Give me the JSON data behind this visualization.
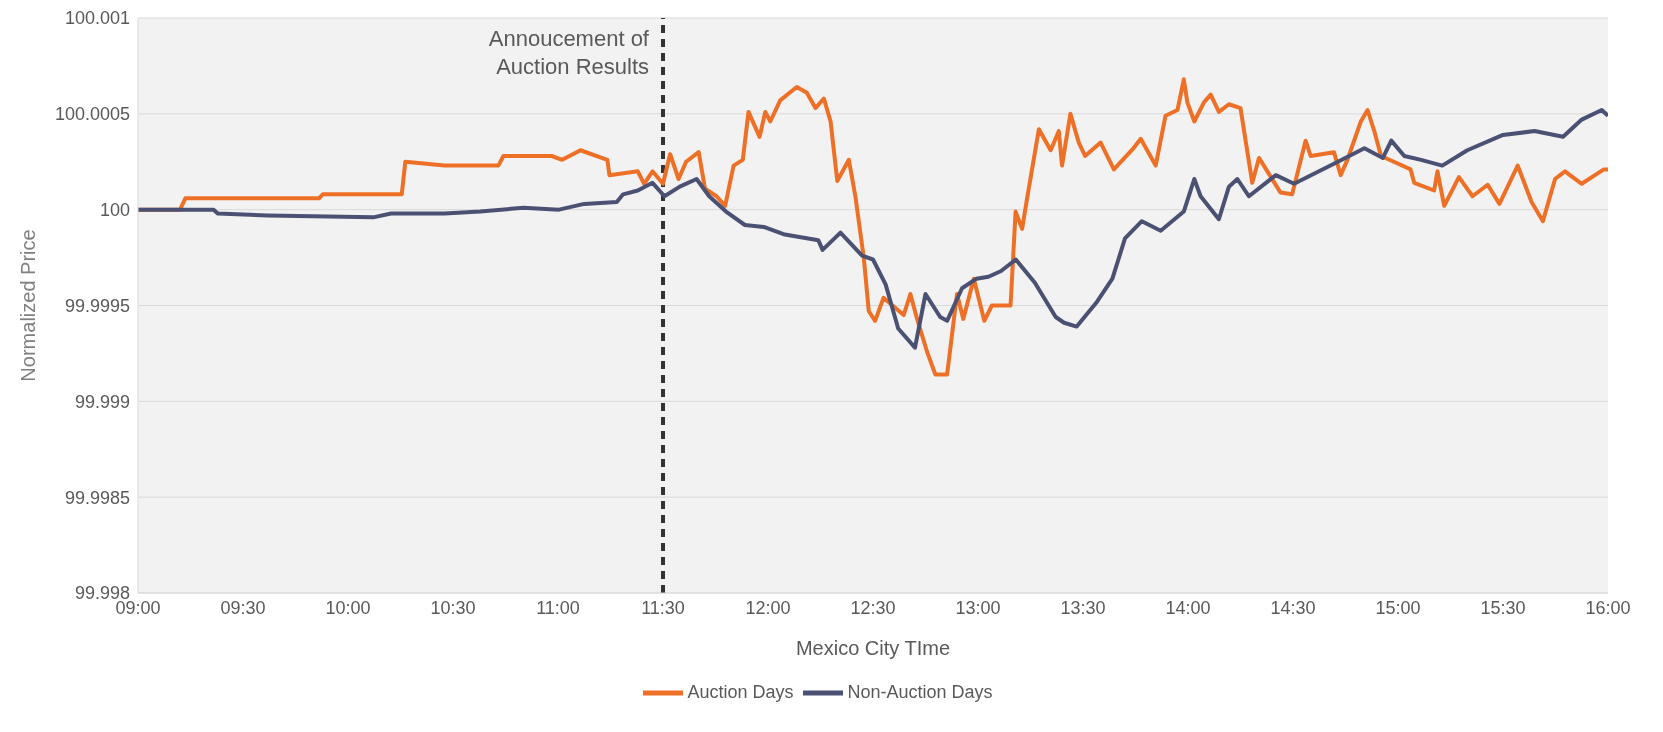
{
  "chart_data": {
    "type": "line",
    "xlabel": "Mexico City TIme",
    "ylabel": "Normalized Price",
    "xlim": [
      9,
      16
    ],
    "xticks": [
      {
        "value": 9,
        "label": "09:00"
      },
      {
        "value": 9.5,
        "label": "09:30"
      },
      {
        "value": 10,
        "label": "10:00"
      },
      {
        "value": 10.5,
        "label": "10:30"
      },
      {
        "value": 11,
        "label": "11:00"
      },
      {
        "value": 11.5,
        "label": "11:30"
      },
      {
        "value": 12,
        "label": "12:00"
      },
      {
        "value": 12.5,
        "label": "12:30"
      },
      {
        "value": 13,
        "label": "13:00"
      },
      {
        "value": 13.5,
        "label": "13:30"
      },
      {
        "value": 14,
        "label": "14:00"
      },
      {
        "value": 14.5,
        "label": "14:30"
      },
      {
        "value": 15,
        "label": "15:00"
      },
      {
        "value": 15.5,
        "label": "15:30"
      },
      {
        "value": 16,
        "label": "16:00"
      }
    ],
    "ylim": [
      99.998,
      100.001
    ],
    "yticks": [
      99.998,
      99.9985,
      99.999,
      99.9995,
      100,
      100.0005,
      100.001
    ],
    "grid": "y",
    "legend": "bottom",
    "marker": "none",
    "line_style": "solid",
    "ref_lines": [
      {
        "axis": "x",
        "value": 11.5,
        "label": "Annoucement of Auction Results",
        "color": "#333333",
        "line_style": "dashed"
      }
    ],
    "series": [
      {
        "name": "Auction Days",
        "color": "#ee7027",
        "x": [
          9,
          9.2,
          9.226,
          9.863,
          9.88,
          10.256,
          10.273,
          10.46,
          10.716,
          10.74,
          10.97,
          11.02,
          11.107,
          11.235,
          11.245,
          11.38,
          11.41,
          11.45,
          11.5,
          11.534,
          11.574,
          11.61,
          11.67,
          11.7,
          11.755,
          11.796,
          11.836,
          11.88,
          11.907,
          11.96,
          11.987,
          12.011,
          12.058,
          12.137,
          12.185,
          12.226,
          12.266,
          12.298,
          12.33,
          12.385,
          12.416,
          12.456,
          12.48,
          12.51,
          12.55,
          12.646,
          12.678,
          12.71,
          12.757,
          12.797,
          12.853,
          12.9,
          12.93,
          12.98,
          13.03,
          13.066,
          13.155,
          13.179,
          13.21,
          13.234,
          13.29,
          13.346,
          13.385,
          13.4,
          13.44,
          13.48,
          13.51,
          13.584,
          13.647,
          13.74,
          13.775,
          13.846,
          13.893,
          13.95,
          13.98,
          13.997,
          14.03,
          14.076,
          14.108,
          14.147,
          14.195,
          14.25,
          14.306,
          14.338,
          14.378,
          14.44,
          14.496,
          14.56,
          14.584,
          14.695,
          14.727,
          14.759,
          14.823,
          14.855,
          14.887,
          14.919,
          14.98,
          15.06,
          15.077,
          15.172,
          15.188,
          15.22,
          15.29,
          15.355,
          15.427,
          15.483,
          15.57,
          15.636,
          15.69,
          15.748,
          15.795,
          15.875,
          15.98,
          16
        ],
        "values": [
          100,
          100,
          100.00006,
          100.00006,
          100.00008,
          100.00008,
          100.00025,
          100.00023,
          100.00023,
          100.00028,
          100.00028,
          100.00026,
          100.00031,
          100.00026,
          100.00018,
          100.0002,
          100.000135,
          100.0002,
          100.000135,
          100.00029,
          100.00016,
          100.00025,
          100.0003,
          100.00011,
          100.00007,
          100.00002,
          100.00023,
          100.00026,
          100.00051,
          100.00038,
          100.00051,
          100.00046,
          100.00057,
          100.00064,
          100.00061,
          100.00053,
          100.00058,
          100.00046,
          100.00015,
          100.00026,
          100.00007,
          99.99975,
          99.99947,
          99.99942,
          99.99954,
          99.99945,
          99.99956,
          99.99943,
          99.99926,
          99.99914,
          99.99914,
          99.99956,
          99.99943,
          99.99964,
          99.99942,
          99.9995,
          99.9995,
          99.99999,
          99.9999,
          100.00006,
          100.00042,
          100.00031,
          100.00041,
          100.00023,
          100.0005,
          100.00035,
          100.00028,
          100.00035,
          100.00021,
          100.00032,
          100.00037,
          100.00023,
          100.00049,
          100.00052,
          100.00068,
          100.00056,
          100.00046,
          100.00056,
          100.0006,
          100.00051,
          100.00055,
          100.00053,
          100.00014,
          100.00027,
          100.0002,
          100.00009,
          100.00008,
          100.00036,
          100.00028,
          100.0003,
          100.00018,
          100.00026,
          100.00046,
          100.00052,
          100.00041,
          100.00028,
          100.00025,
          100.00021,
          100.00014,
          100.0001,
          100.0002,
          100.00002,
          100.00017,
          100.00007,
          100.00013,
          100.00003,
          100.00023,
          100.00004,
          99.99994,
          100.00016,
          100.0002,
          100.000135,
          100.00021,
          100.00021
        ]
      },
      {
        "name": "Non-Auction Days",
        "color": "#4b5173",
        "x": [
          9,
          9.36,
          9.38,
          9.618,
          10.12,
          10.205,
          10.46,
          10.63,
          10.835,
          11.005,
          11.125,
          11.28,
          11.31,
          11.38,
          11.45,
          11.507,
          11.58,
          11.66,
          11.72,
          11.8,
          11.89,
          11.98,
          12.08,
          12.24,
          12.26,
          12.345,
          12.448,
          12.5,
          12.56,
          12.62,
          12.7,
          12.75,
          12.82,
          12.853,
          12.924,
          12.993,
          13.05,
          13.11,
          13.18,
          13.27,
          13.37,
          13.41,
          13.47,
          13.567,
          13.64,
          13.7,
          13.78,
          13.87,
          13.98,
          14.03,
          14.06,
          14.147,
          14.195,
          14.235,
          14.29,
          14.418,
          14.505,
          14.695,
          14.84,
          14.928,
          14.968,
          15.03,
          15.11,
          15.211,
          15.33,
          15.5,
          15.65,
          15.786,
          15.875,
          15.97,
          16
        ],
        "values": [
          100,
          100,
          99.99998,
          99.99997,
          99.99996,
          99.99998,
          99.99998,
          99.99999,
          100.00001,
          100,
          100.00003,
          100.00004,
          100.00008,
          100.0001,
          100.00014,
          100.00007,
          100.00012,
          100.00016,
          100.00007,
          99.99999,
          99.99992,
          99.99991,
          99.99987,
          99.99984,
          99.99979,
          99.99988,
          99.99976,
          99.99974,
          99.99961,
          99.99938,
          99.99928,
          99.99956,
          99.99944,
          99.99942,
          99.99959,
          99.99964,
          99.99965,
          99.99968,
          99.99974,
          99.99962,
          99.99944,
          99.99941,
          99.99939,
          99.99952,
          99.99964,
          99.99985,
          99.99994,
          99.99989,
          99.99999,
          100.00016,
          100.00007,
          99.99995,
          100.00012,
          100.00016,
          100.00007,
          100.00018,
          100.000135,
          100.00024,
          100.00032,
          100.00027,
          100.00036,
          100.00028,
          100.00026,
          100.00023,
          100.00031,
          100.00039,
          100.00041,
          100.00038,
          100.00047,
          100.00052,
          100.00049
        ]
      }
    ]
  }
}
